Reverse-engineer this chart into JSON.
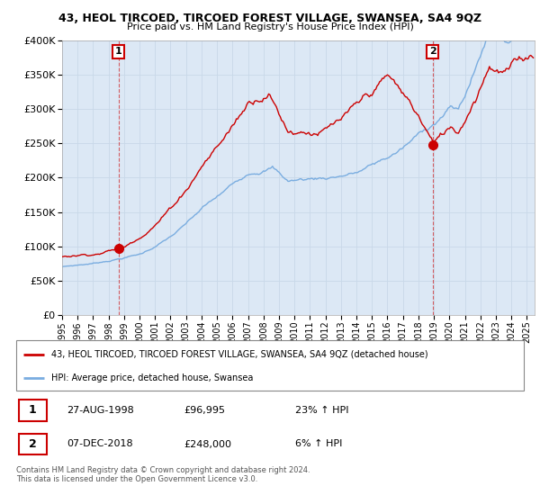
{
  "title": "43, HEOL TIRCOED, TIRCOED FOREST VILLAGE, SWANSEA, SA4 9QZ",
  "subtitle": "Price paid vs. HM Land Registry's House Price Index (HPI)",
  "legend_line1": "43, HEOL TIRCOED, TIRCOED FOREST VILLAGE, SWANSEA, SA4 9QZ (detached house)",
  "legend_line2": "HPI: Average price, detached house, Swansea",
  "sale1_date": "27-AUG-1998",
  "sale1_price": "£96,995",
  "sale1_hpi": "23% ↑ HPI",
  "sale1_x": 1998.65,
  "sale1_y": 96995,
  "sale2_date": "07-DEC-2018",
  "sale2_price": "£248,000",
  "sale2_hpi": "6% ↑ HPI",
  "sale2_x": 2018.92,
  "sale2_y": 248000,
  "copyright": "Contains HM Land Registry data © Crown copyright and database right 2024.\nThis data is licensed under the Open Government Licence v3.0.",
  "ylim": [
    0,
    400000
  ],
  "xlim": [
    1995.0,
    2025.5
  ],
  "red_color": "#cc0000",
  "blue_color": "#7aade0",
  "annotation_box_color": "#cc0000",
  "grid_color": "#c8d8e8",
  "plot_bg_color": "#dce8f5",
  "background_color": "#ffffff"
}
